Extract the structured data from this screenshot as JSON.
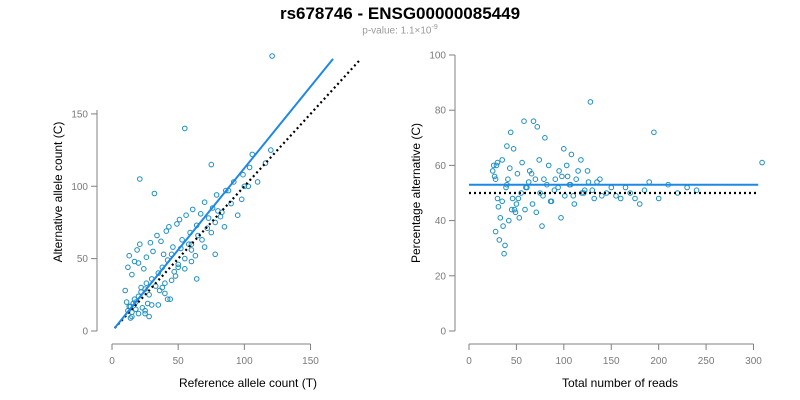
{
  "header": {
    "title": "rs678746 - ENSG00000085449",
    "pvalue_label": "p-value: 1.1×10",
    "pvalue_exponent": "-9"
  },
  "colors": {
    "points": "#1f8fbf",
    "fit": "#1e88e5",
    "reference": "#000000",
    "axis": "#808080"
  },
  "chart_data": [
    {
      "type": "scatter",
      "title": "",
      "xlabel": "Reference allele count (T)",
      "ylabel": "Alternative allele count (C)",
      "xlim": [
        0,
        170
      ],
      "ylim": [
        0,
        190
      ],
      "xticks": [
        0,
        50,
        100,
        150
      ],
      "yticks": [
        0,
        50,
        100,
        150
      ],
      "grid": false,
      "fit_line": {
        "x": [
          2,
          167
        ],
        "y": [
          2,
          188
        ]
      },
      "reference_line": {
        "x": [
          2,
          188
        ],
        "y": [
          2,
          188
        ]
      },
      "x": [
        121,
        55,
        21,
        32,
        75,
        106,
        120,
        103,
        88,
        110,
        60,
        78,
        44,
        48,
        10,
        12,
        14,
        15,
        16,
        17,
        18,
        20,
        22,
        23,
        25,
        26,
        27,
        28,
        30,
        33,
        35,
        36,
        38,
        40,
        42,
        45,
        47,
        50,
        52,
        55,
        58,
        60,
        63,
        65,
        68,
        70,
        72,
        75,
        78,
        80,
        82,
        85,
        90,
        95,
        98,
        100,
        12,
        13,
        15,
        17,
        19,
        20,
        21,
        24,
        26,
        29,
        31,
        34,
        37,
        39,
        41,
        43,
        46,
        49,
        51,
        53,
        56,
        59,
        61,
        64,
        67,
        70,
        73,
        76,
        79,
        83,
        86,
        92,
        99,
        104,
        116,
        18,
        22,
        25,
        28,
        35,
        40,
        45,
        50,
        55,
        60,
        38,
        42,
        30,
        25,
        20,
        15,
        14,
        13,
        11,
        64
      ],
      "y": [
        190,
        140,
        105,
        95,
        115,
        122,
        125,
        100,
        97,
        103,
        48,
        53,
        22,
        38,
        28,
        14,
        17,
        13,
        19,
        22,
        15,
        24,
        27,
        16,
        29,
        33,
        19,
        25,
        36,
        31,
        40,
        28,
        44,
        33,
        49,
        53,
        41,
        46,
        57,
        43,
        60,
        56,
        52,
        66,
        63,
        58,
        71,
        68,
        75,
        83,
        79,
        72,
        88,
        80,
        91,
        100,
        44,
        52,
        39,
        48,
        56,
        47,
        60,
        43,
        51,
        61,
        55,
        66,
        62,
        53,
        69,
        72,
        58,
        74,
        77,
        63,
        80,
        68,
        84,
        73,
        81,
        89,
        78,
        85,
        94,
        82,
        97,
        103,
        108,
        113,
        116,
        20,
        30,
        12,
        10,
        18,
        26,
        35,
        44,
        50,
        60,
        30,
        22,
        18,
        14,
        12,
        10,
        9,
        17,
        20,
        36
      ]
    },
    {
      "type": "scatter",
      "title": "",
      "xlabel": "Total number of reads",
      "ylabel": "Percentage alternative (C)",
      "xlim": [
        0,
        310
      ],
      "ylim": [
        0,
        100
      ],
      "xticks": [
        0,
        50,
        100,
        150,
        200,
        250,
        300
      ],
      "yticks": [
        0,
        20,
        40,
        60,
        80,
        100
      ],
      "grid": false,
      "fit_line": {
        "x": [
          0,
          305
        ],
        "y": [
          53,
          53
        ]
      },
      "reference_line": {
        "x": [
          0,
          305
        ],
        "y": [
          50,
          50
        ]
      },
      "x": [
        128,
        195,
        309,
        58,
        68,
        72,
        80,
        100,
        108,
        44,
        40,
        39,
        30,
        28,
        32,
        37,
        38,
        42,
        48,
        50,
        52,
        55,
        60,
        63,
        66,
        70,
        75,
        78,
        82,
        86,
        90,
        95,
        98,
        103,
        106,
        110,
        113,
        118,
        121,
        125,
        130,
        135,
        140,
        150,
        160,
        170,
        180,
        190,
        200,
        220,
        230,
        240,
        25,
        27,
        29,
        31,
        33,
        35,
        36,
        41,
        43,
        46,
        47,
        49,
        51,
        53,
        56,
        59,
        61,
        64,
        67,
        71,
        74,
        77,
        79,
        84,
        87,
        91,
        94,
        97,
        101,
        104,
        107,
        111,
        115,
        119,
        122,
        126,
        132,
        138,
        145,
        155,
        165,
        175,
        185,
        210,
        35,
        40,
        45,
        30,
        28,
        26
      ],
      "y": [
        83,
        72,
        61,
        76,
        76,
        74,
        70,
        66,
        64,
        72,
        67,
        52,
        61,
        36,
        33,
        28,
        31,
        40,
        44,
        46,
        48,
        50,
        52,
        54,
        57,
        55,
        50,
        49,
        53,
        47,
        51,
        58,
        56,
        60,
        53,
        49,
        55,
        62,
        50,
        58,
        51,
        54,
        49,
        52,
        48,
        50,
        46,
        54,
        48,
        50,
        52,
        51,
        58,
        56,
        60,
        45,
        41,
        62,
        38,
        55,
        59,
        48,
        66,
        43,
        57,
        41,
        61,
        44,
        52,
        58,
        46,
        43,
        62,
        38,
        55,
        60,
        47,
        55,
        52,
        41,
        49,
        56,
        53,
        46,
        58,
        50,
        51,
        54,
        48,
        55,
        50,
        49,
        52,
        48,
        51,
        53,
        47,
        53,
        44,
        48,
        55,
        60
      ]
    }
  ]
}
